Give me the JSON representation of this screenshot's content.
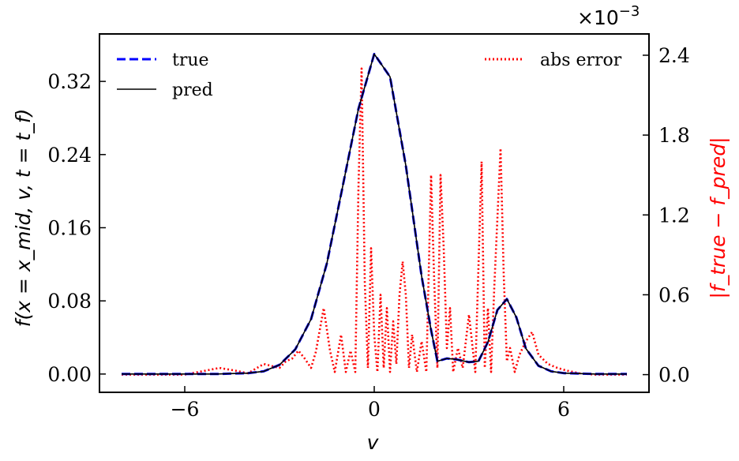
{
  "chart_data": {
    "type": "line",
    "xlabel": "v",
    "ylabel": "f(x = x_mid, v, t = t_f)",
    "ylabel_right": "|f_true − f_pred|",
    "xlim": [
      -8.7,
      8.7
    ],
    "ylim": [
      -0.02,
      0.3719
    ],
    "ylim_right": [
      -0.000133,
      0.00256
    ],
    "x_ticks": [
      -6,
      0,
      6
    ],
    "x_tick_labels": [
      "−6",
      "0",
      "6"
    ],
    "y_ticks": [
      0.0,
      0.08,
      0.16,
      0.24,
      0.32
    ],
    "y_tick_labels": [
      "0.00",
      "0.08",
      "0.16",
      "0.24",
      "0.32"
    ],
    "y_right_ticks": [
      0.0,
      0.0006,
      0.0012,
      0.0018,
      0.0024
    ],
    "y_right_tick_labels": [
      "0.0",
      "0.6",
      "1.2",
      "1.8",
      "2.4"
    ],
    "right_offset_label": "×10",
    "right_offset_exponent": "−3",
    "legend_left": [
      "true",
      "pred"
    ],
    "legend_right": [
      "abs error"
    ],
    "colors": {
      "true": "#0000ff",
      "pred": "#000000",
      "abs_error": "#ff0000",
      "right_label": "#ff0000"
    },
    "grid": false,
    "series": [
      {
        "name": "true",
        "axis": "left",
        "style": "dashed",
        "x": [
          -8.0,
          -5.0,
          -4.0,
          -3.5,
          -3.0,
          -2.5,
          -2.0,
          -1.5,
          -1.0,
          -0.5,
          0.0,
          0.5,
          1.0,
          1.5,
          1.8,
          2.0,
          2.3,
          2.6,
          3.0,
          3.3,
          3.6,
          3.9,
          4.2,
          4.5,
          4.8,
          5.2,
          5.6,
          6.0,
          7.0,
          8.0
        ],
        "y": [
          0.0,
          0.0,
          0.001,
          0.003,
          0.01,
          0.027,
          0.06,
          0.121,
          0.205,
          0.29,
          0.35,
          0.325,
          0.228,
          0.107,
          0.048,
          0.014,
          0.017,
          0.016,
          0.013,
          0.014,
          0.035,
          0.07,
          0.082,
          0.062,
          0.028,
          0.009,
          0.003,
          0.001,
          0.0,
          0.0
        ]
      },
      {
        "name": "pred",
        "axis": "left",
        "style": "solid",
        "x": [
          -8.0,
          -5.0,
          -4.0,
          -3.5,
          -3.0,
          -2.5,
          -2.0,
          -1.5,
          -1.0,
          -0.5,
          0.0,
          0.5,
          1.0,
          1.5,
          1.8,
          2.0,
          2.3,
          2.6,
          3.0,
          3.3,
          3.6,
          3.9,
          4.2,
          4.5,
          4.8,
          5.2,
          5.6,
          6.0,
          7.0,
          8.0
        ],
        "y": [
          0.0,
          0.0,
          0.001,
          0.003,
          0.01,
          0.027,
          0.06,
          0.121,
          0.205,
          0.29,
          0.35,
          0.325,
          0.228,
          0.107,
          0.048,
          0.014,
          0.017,
          0.016,
          0.013,
          0.014,
          0.035,
          0.07,
          0.082,
          0.062,
          0.028,
          0.009,
          0.003,
          0.001,
          0.0,
          0.0
        ]
      },
      {
        "name": "abs error",
        "axis": "right",
        "style": "dotted",
        "x": [
          -8.0,
          -6.0,
          -4.9,
          -4.4,
          -4.0,
          -3.5,
          -3.0,
          -2.8,
          -2.6,
          -2.4,
          -2.2,
          -2.0,
          -1.85,
          -1.6,
          -1.4,
          -1.25,
          -1.05,
          -0.9,
          -0.75,
          -0.6,
          -0.5,
          -0.4,
          -0.3,
          -0.2,
          -0.1,
          0.0,
          0.1,
          0.2,
          0.3,
          0.4,
          0.5,
          0.6,
          0.7,
          0.8,
          0.9,
          1.0,
          1.1,
          1.2,
          1.35,
          1.5,
          1.65,
          1.8,
          1.9,
          2.0,
          2.1,
          2.2,
          2.3,
          2.4,
          2.5,
          2.65,
          2.8,
          3.0,
          3.2,
          3.4,
          3.5,
          3.6,
          3.7,
          3.8,
          4.0,
          4.1,
          4.2,
          4.3,
          4.45,
          4.6,
          4.8,
          5.0,
          5.2,
          5.5,
          5.8,
          6.1,
          6.5,
          7.0,
          8.0
        ],
        "y": [
          0.0,
          0.0,
          5e-05,
          3e-05,
          1e-05,
          8e-05,
          5e-05,
          0.0001,
          0.00012,
          0.00018,
          0.00012,
          5e-05,
          0.00017,
          0.0005,
          0.00018,
          2e-05,
          0.0003,
          2e-05,
          0.00018,
          2e-05,
          0.0014,
          0.0023,
          0.0007,
          5e-05,
          0.00095,
          0.0003,
          2e-05,
          0.0006,
          5e-05,
          0.0005,
          2e-05,
          0.0004,
          8e-05,
          0.0006,
          0.00085,
          0.0006,
          5e-05,
          0.0003,
          2e-05,
          0.00025,
          2e-05,
          0.0015,
          0.0007,
          5e-05,
          0.0015,
          0.00095,
          0.0002,
          0.0005,
          2e-05,
          0.0002,
          5e-05,
          0.00045,
          2e-05,
          0.0016,
          5e-05,
          0.0005,
          2e-05,
          0.00065,
          0.0017,
          0.00075,
          0.0001,
          0.0002,
          2e-05,
          0.00015,
          0.00025,
          0.00032,
          0.00015,
          8e-05,
          5e-05,
          3e-05,
          1e-05,
          0.0,
          0.0
        ]
      }
    ]
  }
}
